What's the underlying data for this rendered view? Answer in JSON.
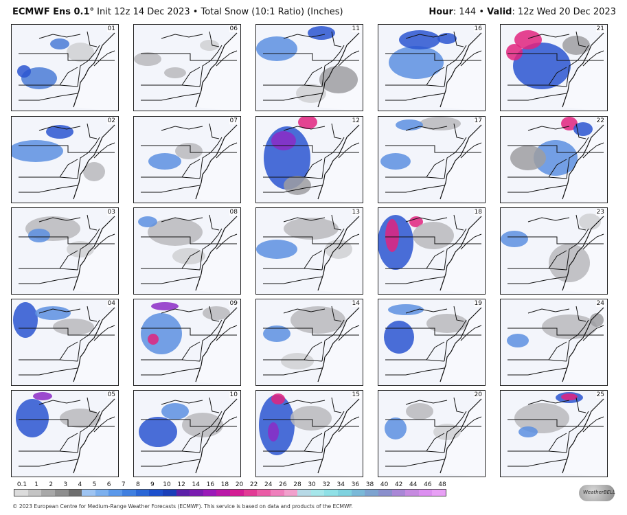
{
  "header": {
    "model": "ECMWF Ens 0.1°",
    "subtitle": " Init 12z 14 Dec 2023 • Total Snow (10:1 Ratio) (Inches)",
    "hour_label": "Hour",
    "hour_value": ": 144 • ",
    "valid_label": "Valid",
    "valid_value": ": 12z Wed 20 Dec 2023"
  },
  "members": [
    {
      "id": "01",
      "blobs": [
        [
          "#4a7bd6",
          40,
          78,
          26,
          16
        ],
        [
          "#2a55d0",
          18,
          68,
          10,
          9
        ],
        [
          "#cfd0d2",
          100,
          40,
          20,
          14
        ],
        [
          "#4a7bd6",
          70,
          28,
          14,
          8
        ]
      ]
    },
    {
      "id": "06",
      "blobs": [
        [
          "#b8b9bc",
          20,
          50,
          20,
          10
        ],
        [
          "#b8b9bc",
          60,
          70,
          16,
          8
        ],
        [
          "#cfd0d2",
          110,
          30,
          14,
          8
        ]
      ]
    },
    {
      "id": "11",
      "blobs": [
        [
          "#5c8fe0",
          30,
          35,
          30,
          18
        ],
        [
          "#2a55d0",
          95,
          12,
          20,
          10
        ],
        [
          "#9d9ea1",
          120,
          80,
          28,
          20
        ],
        [
          "#cfd0d2",
          80,
          100,
          22,
          14
        ]
      ]
    },
    {
      "id": "16",
      "blobs": [
        [
          "#5c8fe0",
          55,
          55,
          40,
          24
        ],
        [
          "#2a55d0",
          60,
          22,
          30,
          14
        ],
        [
          "#2a55d0",
          100,
          20,
          14,
          8
        ]
      ]
    },
    {
      "id": "21",
      "blobs": [
        [
          "#2a55d0",
          60,
          60,
          42,
          34
        ],
        [
          "#e0237e",
          40,
          22,
          20,
          14
        ],
        [
          "#e0237e",
          20,
          40,
          12,
          12
        ],
        [
          "#9d9ea1",
          110,
          30,
          20,
          14
        ]
      ]
    },
    {
      "id": "02",
      "blobs": [
        [
          "#5c8fe0",
          35,
          50,
          40,
          16
        ],
        [
          "#2a55d0",
          70,
          22,
          20,
          10
        ],
        [
          "#b8b9bc",
          120,
          80,
          16,
          14
        ]
      ]
    },
    {
      "id": "07",
      "blobs": [
        [
          "#5c8fe0",
          45,
          65,
          24,
          12
        ],
        [
          "#b8b9bc",
          80,
          50,
          20,
          12
        ]
      ]
    },
    {
      "id": "12",
      "blobs": [
        [
          "#2a55d0",
          45,
          60,
          34,
          46
        ],
        [
          "#8b2bc5",
          40,
          35,
          18,
          14
        ],
        [
          "#e0237e",
          75,
          8,
          14,
          10
        ],
        [
          "#9d9ea1",
          60,
          100,
          20,
          14
        ]
      ]
    },
    {
      "id": "17",
      "blobs": [
        [
          "#5c8fe0",
          25,
          65,
          22,
          12
        ],
        [
          "#b8b9bc",
          90,
          10,
          30,
          10
        ],
        [
          "#5c8fe0",
          45,
          12,
          20,
          8
        ]
      ]
    },
    {
      "id": "22",
      "blobs": [
        [
          "#5c8fe0",
          80,
          60,
          32,
          26
        ],
        [
          "#e0237e",
          100,
          10,
          12,
          10
        ],
        [
          "#2a55d0",
          120,
          18,
          14,
          10
        ],
        [
          "#9d9ea1",
          40,
          60,
          26,
          18
        ]
      ]
    },
    {
      "id": "03",
      "blobs": [
        [
          "#b8b9bc",
          60,
          30,
          40,
          18
        ],
        [
          "#5c8fe0",
          40,
          40,
          16,
          10
        ],
        [
          "#cfd0d2",
          100,
          60,
          20,
          12
        ]
      ]
    },
    {
      "id": "08",
      "blobs": [
        [
          "#b8b9bc",
          60,
          35,
          40,
          20
        ],
        [
          "#5c8fe0",
          20,
          20,
          14,
          8
        ],
        [
          "#cfd0d2",
          80,
          70,
          24,
          12
        ]
      ]
    },
    {
      "id": "13",
      "blobs": [
        [
          "#5c8fe0",
          30,
          60,
          30,
          14
        ],
        [
          "#b8b9bc",
          80,
          30,
          40,
          16
        ],
        [
          "#cfd0d2",
          120,
          60,
          20,
          14
        ]
      ]
    },
    {
      "id": "18",
      "blobs": [
        [
          "#2a55d0",
          25,
          50,
          26,
          40
        ],
        [
          "#e0237e",
          20,
          40,
          10,
          24
        ],
        [
          "#e0237e",
          55,
          20,
          10,
          8
        ],
        [
          "#b8b9bc",
          80,
          40,
          30,
          20
        ]
      ]
    },
    {
      "id": "23",
      "blobs": [
        [
          "#5c8fe0",
          20,
          45,
          20,
          12
        ],
        [
          "#b8b9bc",
          100,
          80,
          30,
          28
        ],
        [
          "#cfd0d2",
          130,
          20,
          16,
          12
        ]
      ]
    },
    {
      "id": "04",
      "blobs": [
        [
          "#2a55d0",
          20,
          30,
          18,
          26
        ],
        [
          "#5c8fe0",
          60,
          20,
          26,
          10
        ],
        [
          "#b8b9bc",
          90,
          40,
          30,
          12
        ]
      ]
    },
    {
      "id": "09",
      "blobs": [
        [
          "#5c8fe0",
          40,
          50,
          30,
          30
        ],
        [
          "#e0237e",
          28,
          58,
          8,
          8
        ],
        [
          "#8b2bc5",
          45,
          10,
          20,
          6
        ],
        [
          "#b8b9bc",
          120,
          20,
          20,
          10
        ]
      ]
    },
    {
      "id": "14",
      "blobs": [
        [
          "#5c8fe0",
          30,
          50,
          20,
          12
        ],
        [
          "#b8b9bc",
          90,
          30,
          40,
          20
        ],
        [
          "#cfd0d2",
          60,
          90,
          24,
          12
        ]
      ]
    },
    {
      "id": "19",
      "blobs": [
        [
          "#2a55d0",
          30,
          55,
          22,
          24
        ],
        [
          "#5c8fe0",
          40,
          15,
          26,
          8
        ],
        [
          "#b8b9bc",
          100,
          35,
          30,
          14
        ]
      ]
    },
    {
      "id": "24",
      "blobs": [
        [
          "#5c8fe0",
          25,
          60,
          16,
          10
        ],
        [
          "#b8b9bc",
          100,
          40,
          40,
          18
        ],
        [
          "#9d9ea1",
          140,
          30,
          10,
          10
        ]
      ]
    },
    {
      "id": "05",
      "blobs": [
        [
          "#2a55d0",
          30,
          40,
          24,
          28
        ],
        [
          "#8b2bc5",
          45,
          8,
          14,
          6
        ],
        [
          "#b8b9bc",
          100,
          40,
          30,
          14
        ]
      ]
    },
    {
      "id": "10",
      "blobs": [
        [
          "#2a55d0",
          35,
          60,
          28,
          22
        ],
        [
          "#5c8fe0",
          60,
          30,
          20,
          12
        ],
        [
          "#b8b9bc",
          100,
          50,
          30,
          18
        ]
      ]
    },
    {
      "id": "15",
      "blobs": [
        [
          "#2a55d0",
          30,
          50,
          26,
          44
        ],
        [
          "#e0237e",
          32,
          12,
          10,
          8
        ],
        [
          "#8b2bc5",
          25,
          60,
          8,
          14
        ],
        [
          "#b8b9bc",
          80,
          40,
          30,
          18
        ]
      ]
    },
    {
      "id": "20",
      "blobs": [
        [
          "#5c8fe0",
          25,
          55,
          16,
          16
        ],
        [
          "#b8b9bc",
          60,
          30,
          20,
          12
        ],
        [
          "#cfd0d2",
          100,
          60,
          20,
          12
        ]
      ]
    },
    {
      "id": "25",
      "blobs": [
        [
          "#2a55d0",
          100,
          10,
          20,
          8
        ],
        [
          "#e0237e",
          100,
          9,
          12,
          5
        ],
        [
          "#b8b9bc",
          60,
          40,
          40,
          22
        ],
        [
          "#5c8fe0",
          40,
          60,
          14,
          8
        ]
      ]
    }
  ],
  "colorbar": {
    "ticks": [
      "0.1",
      "1",
      "2",
      "3",
      "4",
      "5",
      "6",
      "7",
      "8",
      "9",
      "10",
      "12",
      "14",
      "16",
      "18",
      "20",
      "22",
      "24",
      "26",
      "28",
      "30",
      "32",
      "34",
      "36",
      "38",
      "40",
      "42",
      "44",
      "46",
      "48"
    ],
    "colors": [
      "#dcdcdc",
      "#c4c4c4",
      "#a8a8a8",
      "#8e8e8e",
      "#6e6e6e",
      "#9ec4f2",
      "#7cb0ee",
      "#5a98ea",
      "#3f7fe0",
      "#2a66d6",
      "#1c4fcc",
      "#1a3eb8",
      "#5b20a8",
      "#7a1cb0",
      "#9a1ab8",
      "#b918a8",
      "#d41d94",
      "#e23b95",
      "#ea5ca6",
      "#ef7fbc",
      "#f1a0cc",
      "#b7d9e6",
      "#a6e6ea",
      "#8fe0e6",
      "#7fd2df",
      "#7ab9d8",
      "#7da3d0",
      "#8a8fcc",
      "#a987d6",
      "#c68ae0",
      "#dc8ff0",
      "#e8a0f5"
    ]
  },
  "credit": "© 2023 European Centre for Medium-Range Weather Forecasts (ECMWF). This service is based on data and products of the ECMWF.",
  "logo_text": "WeatherBELL"
}
